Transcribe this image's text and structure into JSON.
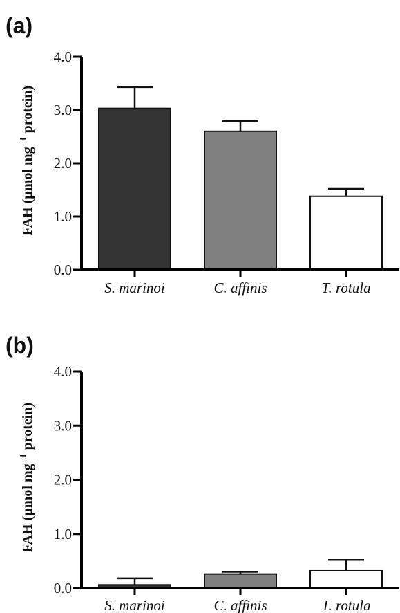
{
  "chart_data": [
    {
      "type": "bar",
      "panel_label": "(a)",
      "categories": [
        "S. marinoi",
        "C. affinis",
        "T. rotula"
      ],
      "values": [
        3.03,
        2.6,
        1.38
      ],
      "errors": [
        0.4,
        0.19,
        0.14
      ],
      "bar_colors": [
        "#333333",
        "#808080",
        "#ffffff"
      ],
      "ylabel_main": "FAH (µmol mg",
      "ylabel_sup": "−1",
      "ylabel_tail": " protein)",
      "ylim": [
        0,
        4.0
      ],
      "yticks": [
        "0.0",
        "1.0",
        "2.0",
        "3.0",
        "4.0"
      ],
      "grid": false
    },
    {
      "type": "bar",
      "panel_label": "(b)",
      "categories": [
        "S. marinoi",
        "C. affinis",
        "T. rotula"
      ],
      "values": [
        0.06,
        0.26,
        0.32
      ],
      "errors": [
        0.12,
        0.04,
        0.2
      ],
      "bar_colors": [
        "#333333",
        "#808080",
        "#ffffff"
      ],
      "ylabel_main": "FAH (µmol mg",
      "ylabel_sup": "−1",
      "ylabel_tail": " protein)",
      "ylim": [
        0,
        4.0
      ],
      "yticks": [
        "0.0",
        "1.0",
        "2.0",
        "3.0",
        "4.0"
      ],
      "grid": false
    }
  ]
}
